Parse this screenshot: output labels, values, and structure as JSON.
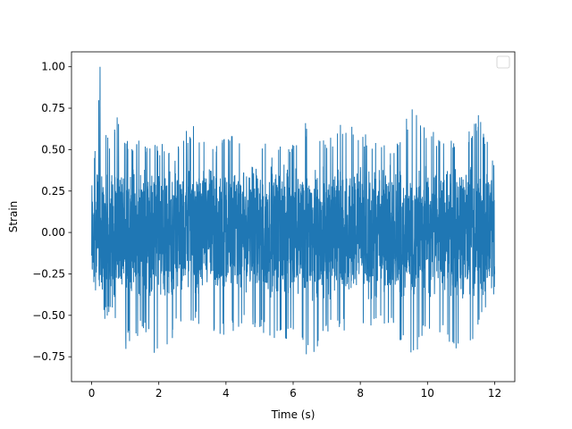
{
  "chart_data": {
    "type": "line",
    "title": "",
    "xlabel": "Time (s)",
    "ylabel": "Strain",
    "xlim": [
      -0.6,
      12.6
    ],
    "ylim": [
      -0.9,
      1.09
    ],
    "xticks": [
      0,
      2,
      4,
      6,
      8,
      10,
      12
    ],
    "xtick_labels": [
      "0",
      "2",
      "4",
      "6",
      "8",
      "10",
      "12"
    ],
    "yticks": [
      -0.75,
      -0.5,
      -0.25,
      0.0,
      0.25,
      0.5,
      0.75,
      1.0
    ],
    "ytick_labels": [
      "−0.75",
      "−0.50",
      "−0.25",
      "0.00",
      "0.25",
      "0.50",
      "0.75",
      "1.00"
    ],
    "grid": false,
    "legend": {
      "placement": "top-right",
      "entries": []
    },
    "series": [
      {
        "color": "#1f77b4",
        "x_range": [
          0,
          12
        ],
        "envelope": {
          "x": [
            0.0,
            0.15,
            0.25,
            0.5,
            0.8,
            1.0,
            1.5,
            2.0,
            2.5,
            3.0,
            3.5,
            4.0,
            4.5,
            5.0,
            5.5,
            6.0,
            6.5,
            7.0,
            7.5,
            8.0,
            8.5,
            9.0,
            9.5,
            10.0,
            10.5,
            11.0,
            11.5,
            12.0
          ],
          "max": [
            0.38,
            0.6,
            1.0,
            0.55,
            0.73,
            0.6,
            0.55,
            0.55,
            0.5,
            0.68,
            0.5,
            0.62,
            0.55,
            0.55,
            0.52,
            0.55,
            0.72,
            0.55,
            0.68,
            0.62,
            0.55,
            0.55,
            0.76,
            0.62,
            0.6,
            0.55,
            0.72,
            0.42
          ],
          "min": [
            -0.48,
            -0.65,
            -0.55,
            -0.5,
            -0.55,
            -0.72,
            -0.6,
            -0.8,
            -0.6,
            -0.55,
            -0.6,
            -0.65,
            -0.55,
            -0.6,
            -0.68,
            -0.62,
            -0.8,
            -0.6,
            -0.6,
            -0.6,
            -0.55,
            -0.6,
            -0.78,
            -0.6,
            -0.62,
            -0.75,
            -0.6,
            -0.4
          ]
        }
      }
    ]
  }
}
